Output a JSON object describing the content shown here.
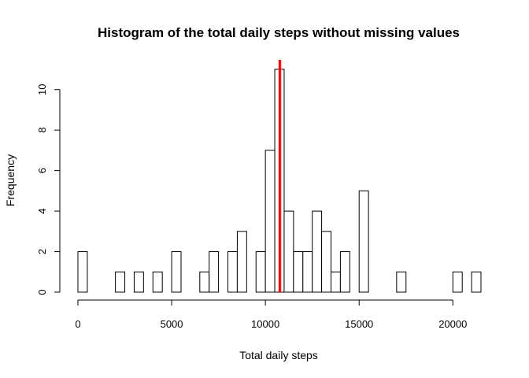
{
  "chart_data": {
    "type": "bar",
    "title": "Histogram of the total daily steps without missing values",
    "xlabel": "Total daily steps",
    "ylabel": "Frequency",
    "bin_width": 500,
    "bins_start": [
      0,
      500,
      1000,
      1500,
      2000,
      2500,
      3000,
      3500,
      4000,
      4500,
      5000,
      5500,
      6000,
      6500,
      7000,
      7500,
      8000,
      8500,
      9000,
      9500,
      10000,
      10500,
      11000,
      11500,
      12000,
      12500,
      13000,
      13500,
      14000,
      14500,
      15000,
      15500,
      16000,
      16500,
      17000,
      17500,
      18000,
      18500,
      19000,
      19500,
      20000,
      20500,
      21000
    ],
    "values": [
      2,
      0,
      0,
      0,
      1,
      0,
      1,
      0,
      1,
      0,
      2,
      0,
      0,
      1,
      2,
      0,
      2,
      3,
      0,
      2,
      7,
      11,
      4,
      2,
      2,
      4,
      3,
      1,
      2,
      0,
      5,
      0,
      0,
      0,
      1,
      0,
      0,
      0,
      0,
      0,
      1,
      0,
      1
    ],
    "xlim": [
      0,
      21500
    ],
    "ylim": [
      0,
      11
    ],
    "x_ticks": [
      0,
      5000,
      10000,
      15000,
      20000
    ],
    "y_ticks": [
      0,
      2,
      4,
      6,
      8,
      10
    ],
    "mean_line": {
      "value": 10766,
      "color": "#ff0000"
    },
    "bar_fill": "#ffffff",
    "bar_stroke": "#000000",
    "grid": false,
    "legend": "none"
  }
}
